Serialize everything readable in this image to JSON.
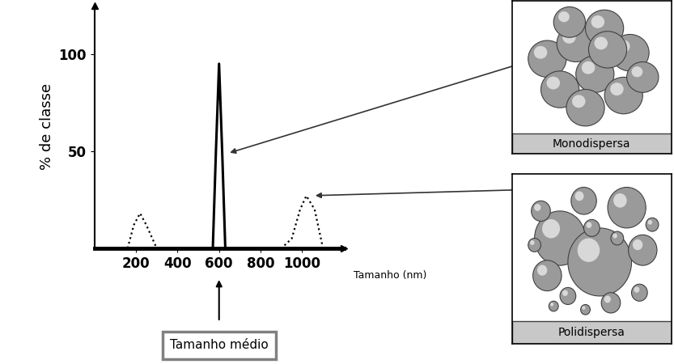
{
  "chart_data": {
    "type": "line",
    "x_label": "Tamanho (nm)",
    "y_label": "% de classe",
    "xlim": [
      0,
      1200
    ],
    "xticks": [
      200,
      400,
      600,
      800,
      1000
    ],
    "ylim": [
      0,
      125
    ],
    "yticks": [
      50,
      100
    ],
    "series": [
      {
        "name": "Monodispersa",
        "color": "#000000",
        "line_style": "solid",
        "x": [
          0,
          570,
          585,
          600,
          615,
          630,
          1200
        ],
        "values": [
          0,
          0,
          50,
          95,
          50,
          0,
          0
        ]
      },
      {
        "name": "Polidispersa",
        "color": "#000000",
        "line_style": "dotted",
        "x": [
          0,
          160,
          190,
          220,
          250,
          300,
          900,
          950,
          990,
          1020,
          1060,
          1100,
          1200
        ],
        "values": [
          0,
          0,
          12,
          18,
          12,
          0,
          0,
          5,
          20,
          27,
          20,
          0,
          0
        ]
      }
    ],
    "annotations": [
      {
        "text": "Tamanho médio",
        "x": 600
      }
    ]
  }
}
